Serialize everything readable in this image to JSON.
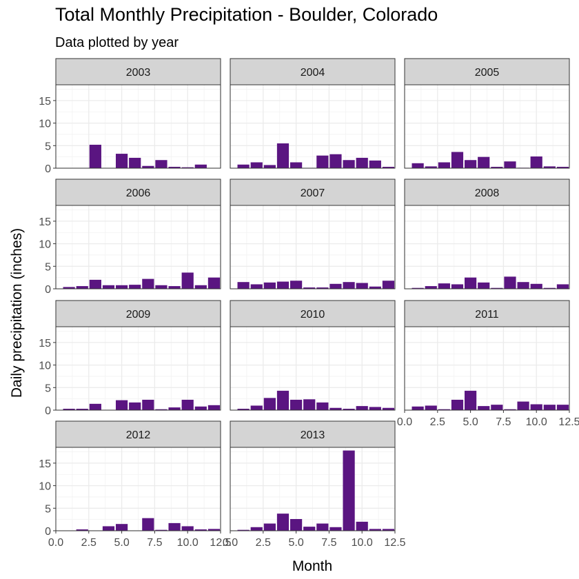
{
  "chart_data": {
    "type": "bar",
    "title": "Total Monthly Precipitation - Boulder, Colorado",
    "subtitle": "Data plotted by year",
    "xlabel": "Month",
    "ylabel": "Daily precipitation (inches)",
    "xlim": [
      0,
      12.5
    ],
    "ylim": [
      0,
      18.5
    ],
    "xticks": [
      "0.0",
      "2.5",
      "5.0",
      "7.5",
      "10.0",
      "12.5"
    ],
    "xtick_values": [
      0,
      2.5,
      5,
      7.5,
      10,
      12.5
    ],
    "yticks": [
      "0",
      "5",
      "10",
      "15"
    ],
    "ytick_values": [
      0,
      5,
      10,
      15
    ],
    "grid": true,
    "bar_color": "#5a1581",
    "x": [
      1,
      2,
      3,
      4,
      5,
      6,
      7,
      8,
      9,
      10,
      11,
      12
    ],
    "panels": [
      {
        "label": "2003",
        "values": [
          0,
          0,
          5.2,
          0,
          3.2,
          2.3,
          0.5,
          1.8,
          0.3,
          0.2,
          0.8,
          0
        ]
      },
      {
        "label": "2004",
        "values": [
          0.8,
          1.3,
          0.7,
          5.5,
          1.3,
          0,
          2.8,
          3.1,
          1.8,
          2.3,
          1.7,
          0.3
        ]
      },
      {
        "label": "2005",
        "values": [
          1.1,
          0.4,
          1.3,
          3.6,
          1.8,
          2.5,
          0.3,
          1.5,
          0.1,
          2.6,
          0.4,
          0.3
        ]
      },
      {
        "label": "2006",
        "values": [
          0.4,
          0.6,
          2.0,
          0.8,
          0.8,
          0.9,
          2.2,
          0.8,
          0.6,
          3.6,
          0.8,
          2.5
        ]
      },
      {
        "label": "2007",
        "values": [
          1.5,
          1.0,
          1.4,
          1.6,
          1.8,
          0.3,
          0.3,
          1.1,
          1.5,
          1.3,
          0.5,
          1.8
        ]
      },
      {
        "label": "2008",
        "values": [
          0.2,
          0.6,
          1.2,
          1.0,
          2.5,
          1.4,
          0.2,
          2.7,
          1.5,
          1.1,
          0.2,
          1.0
        ]
      },
      {
        "label": "2009",
        "values": [
          0.3,
          0.3,
          1.4,
          0,
          2.2,
          1.7,
          2.3,
          0.2,
          0.6,
          2.3,
          0.8,
          1.1
        ]
      },
      {
        "label": "2010",
        "values": [
          0.3,
          1.0,
          2.7,
          4.3,
          2.3,
          2.4,
          1.7,
          0.5,
          0.3,
          0.9,
          0.7,
          0.5
        ]
      },
      {
        "label": "2011",
        "values": [
          0.8,
          1.0,
          0.2,
          2.3,
          4.3,
          0.9,
          1.2,
          0.2,
          1.9,
          1.3,
          1.2,
          1.2
        ]
      },
      {
        "label": "2012",
        "values": [
          0,
          0.3,
          0,
          1.0,
          1.5,
          0,
          2.8,
          0.2,
          1.7,
          1.0,
          0.3,
          0.4
        ]
      },
      {
        "label": "2013",
        "values": [
          0.2,
          0.8,
          1.6,
          3.8,
          2.6,
          0.9,
          1.6,
          0.8,
          17.8,
          2.0,
          0.4,
          0.4
        ]
      }
    ]
  }
}
